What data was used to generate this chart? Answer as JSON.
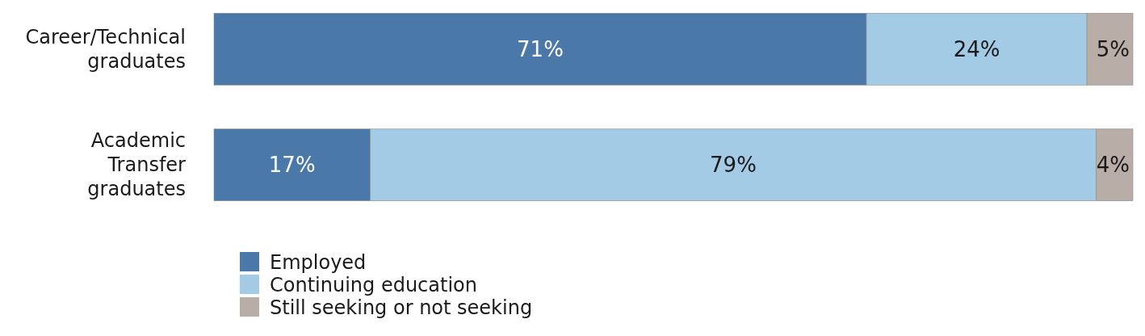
{
  "chart_data": {
    "type": "bar",
    "orientation": "horizontal",
    "stacked": true,
    "legend": "bottom",
    "categories": [
      "Career/Technical graduates",
      "Academic Transfer graduates"
    ],
    "series": [
      {
        "name": "Employed",
        "color": "#4a78a8",
        "values": [
          71,
          17
        ],
        "value_labels": [
          "71%",
          "17%"
        ]
      },
      {
        "name": "Continuing education",
        "color": "#a3cbe6",
        "values": [
          24,
          79
        ],
        "value_labels": [
          "24%",
          "79%"
        ]
      },
      {
        "name": "Still seeking or not seeking",
        "color": "#b9ada8",
        "values": [
          5,
          4
        ],
        "value_labels": [
          "5%",
          "4%"
        ]
      }
    ]
  }
}
